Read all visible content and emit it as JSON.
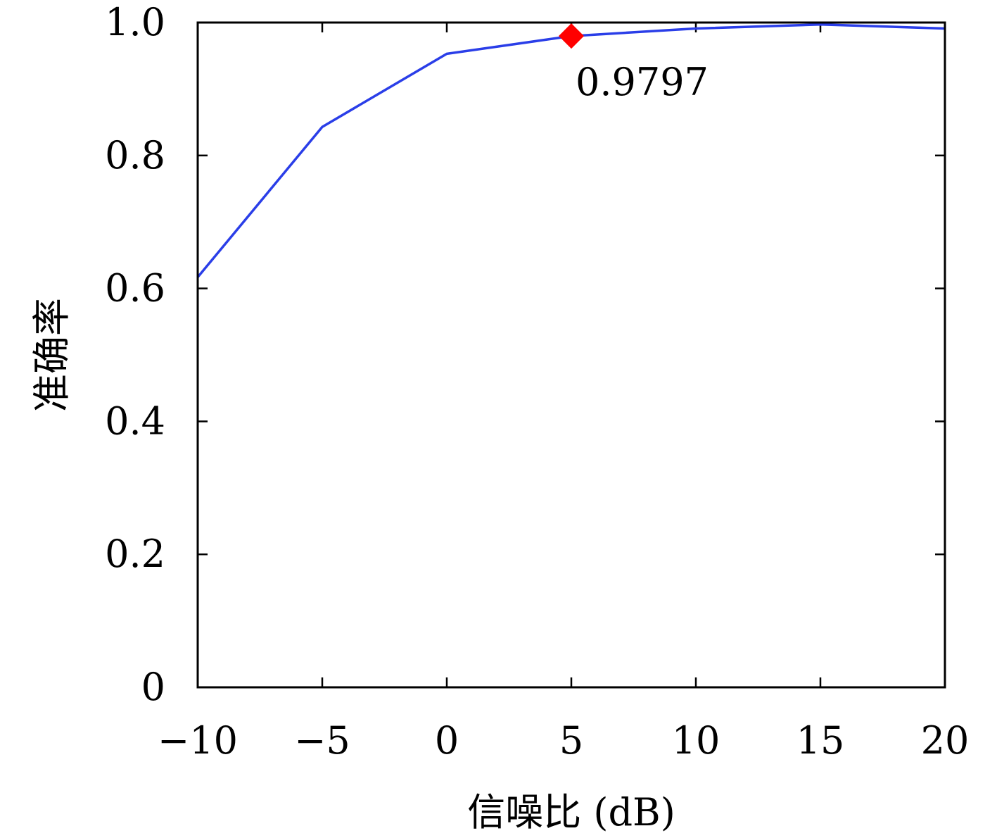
{
  "chart_data": {
    "type": "line",
    "xlabel": "信噪比 (dB)",
    "ylabel": "准确率",
    "xlim": [
      -10,
      20
    ],
    "ylim": [
      0,
      1.0
    ],
    "x_ticks": [
      -10,
      -5,
      0,
      5,
      10,
      15,
      20
    ],
    "x_tick_labels": [
      "−10",
      "−5",
      "0",
      "5",
      "10",
      "15",
      "20"
    ],
    "y_ticks": [
      0,
      0.2,
      0.4,
      0.6,
      0.8,
      1.0
    ],
    "y_tick_labels": [
      "0",
      "0.2",
      "0.4",
      "0.6",
      "0.8",
      "1.0"
    ],
    "grid": false,
    "series": [
      {
        "color": "#2a3ee8",
        "x": [
          -10,
          -5,
          0,
          5,
          10,
          15,
          20
        ],
        "y": [
          0.617,
          0.843,
          0.953,
          0.9797,
          0.991,
          0.997,
          0.991
        ]
      }
    ],
    "highlight": {
      "x": 5,
      "y": 0.9797,
      "label": "0.9797",
      "marker": "diamond",
      "color": "#ff0000"
    }
  }
}
